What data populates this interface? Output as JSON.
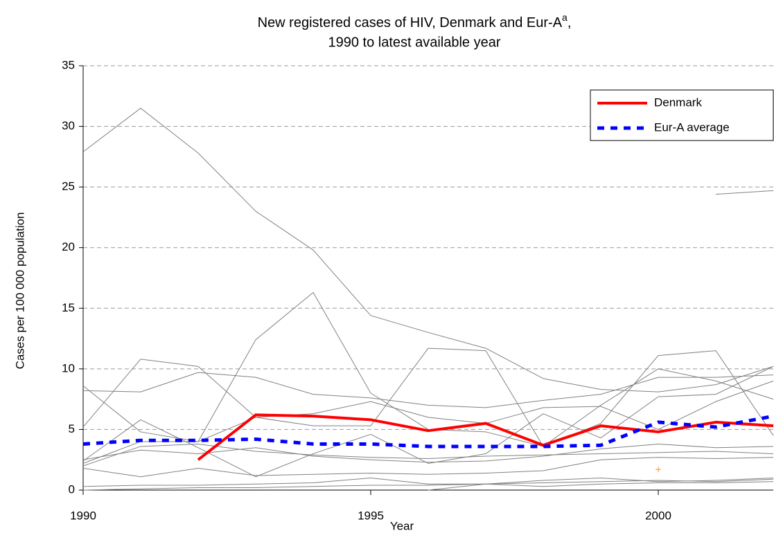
{
  "chart_data": {
    "type": "line",
    "title": "New registered cases of HIV, Denmark and Eur-A",
    "title_superscript": "a",
    "title_suffix": ",",
    "subtitle": "1990 to latest available year",
    "x_label": "Year",
    "y_label": "Cases per 100 000 population",
    "x": [
      1990,
      1991,
      1992,
      1993,
      1994,
      1995,
      1996,
      1997,
      1998,
      1999,
      2000,
      2001,
      2002
    ],
    "xlim": [
      1990,
      2002
    ],
    "xticks": [
      1990,
      1995,
      2000
    ],
    "ylim": [
      0,
      35
    ],
    "yticks": [
      0,
      5,
      10,
      15,
      20,
      25,
      30,
      35
    ],
    "grid": true,
    "legend": "top-right",
    "series": [
      {
        "color": "#808080",
        "values": [
          27.9,
          31.5,
          27.8,
          23.0,
          19.8,
          14.4,
          13.0,
          11.7,
          9.2,
          8.3,
          8.1,
          8.7,
          10.2
        ]
      },
      {
        "color": "#808080",
        "values": [
          5.2,
          10.8,
          10.2,
          6.0,
          5.3,
          5.3,
          11.7,
          11.5,
          3.6,
          5.5,
          11.1,
          11.5,
          4.5
        ]
      },
      {
        "color": "#808080",
        "values": [
          8.6,
          4.8,
          4.0,
          12.4,
          16.3,
          8.0,
          5.0,
          4.8,
          3.6,
          7.0,
          10.0,
          9.0,
          7.5
        ]
      },
      {
        "color": "#808080",
        "values": [
          8.2,
          8.1,
          9.7,
          9.3,
          7.9,
          7.6,
          7.0,
          6.8,
          7.4,
          7.9,
          9.3,
          9.3,
          9.5
        ]
      },
      {
        "color": "#808080",
        "values": [
          2.4,
          5.8,
          3.5,
          1.1,
          3.0,
          4.6,
          2.2,
          3.0,
          6.3,
          4.3,
          7.7,
          7.9,
          10.2
        ]
      },
      {
        "color": "#808080",
        "values": [
          2.2,
          4.0,
          4.0,
          6.0,
          6.3,
          7.3,
          6.0,
          5.5,
          6.8,
          6.9,
          5.0,
          7.3,
          9.0
        ]
      },
      {
        "color": "#808080",
        "values": [
          1.8,
          1.1,
          1.8,
          1.2,
          1.3,
          1.4,
          1.3,
          1.4,
          1.6,
          2.5,
          2.7,
          2.6,
          2.7
        ]
      },
      {
        "color": "#808080",
        "values": [
          2.5,
          3.3,
          3.0,
          3.5,
          2.8,
          2.5,
          2.3,
          2.4,
          2.8,
          3.4,
          3.8,
          3.5,
          3.6
        ]
      },
      {
        "color": "#808080",
        "values": [
          2.0,
          3.6,
          3.8,
          3.2,
          2.9,
          2.7,
          2.6,
          2.8,
          2.9,
          3.0,
          3.1,
          3.2,
          3.0
        ]
      },
      {
        "color": "#808080",
        "values": [
          0.3,
          0.4,
          0.4,
          0.5,
          0.6,
          1.0,
          0.5,
          0.5,
          0.6,
          0.7,
          0.8,
          0.7,
          0.9
        ]
      },
      {
        "color": "#808080",
        "values": [
          0.0,
          0.1,
          0.2,
          0.2,
          0.3,
          0.4,
          0.4,
          0.5,
          0.3,
          0.5,
          0.6,
          0.6,
          0.7
        ]
      },
      {
        "color": "#808080",
        "values": [
          null,
          null,
          null,
          null,
          null,
          null,
          0.0,
          0.5,
          0.8,
          1.0,
          0.7,
          0.8,
          1.0
        ]
      },
      {
        "color": "#808080",
        "values": [
          null,
          null,
          null,
          null,
          null,
          null,
          null,
          null,
          null,
          null,
          null,
          24.4,
          24.7
        ]
      },
      {
        "color": "#ffa040",
        "marker": "+",
        "values": [
          null,
          null,
          null,
          null,
          null,
          null,
          null,
          null,
          null,
          null,
          1.7,
          null,
          null
        ]
      },
      {
        "name": "Denmark",
        "color": "#ff0000",
        "width": 4,
        "values": [
          null,
          null,
          2.5,
          6.2,
          6.1,
          5.8,
          4.9,
          5.5,
          3.7,
          5.3,
          4.8,
          5.6,
          5.3
        ]
      },
      {
        "name": "Eur-A average",
        "color": "#0000ff",
        "width": 5,
        "dashed": true,
        "values": [
          3.8,
          4.1,
          4.1,
          4.2,
          3.8,
          3.8,
          3.6,
          3.6,
          3.6,
          3.7,
          5.6,
          5.2,
          6.1
        ]
      }
    ]
  }
}
